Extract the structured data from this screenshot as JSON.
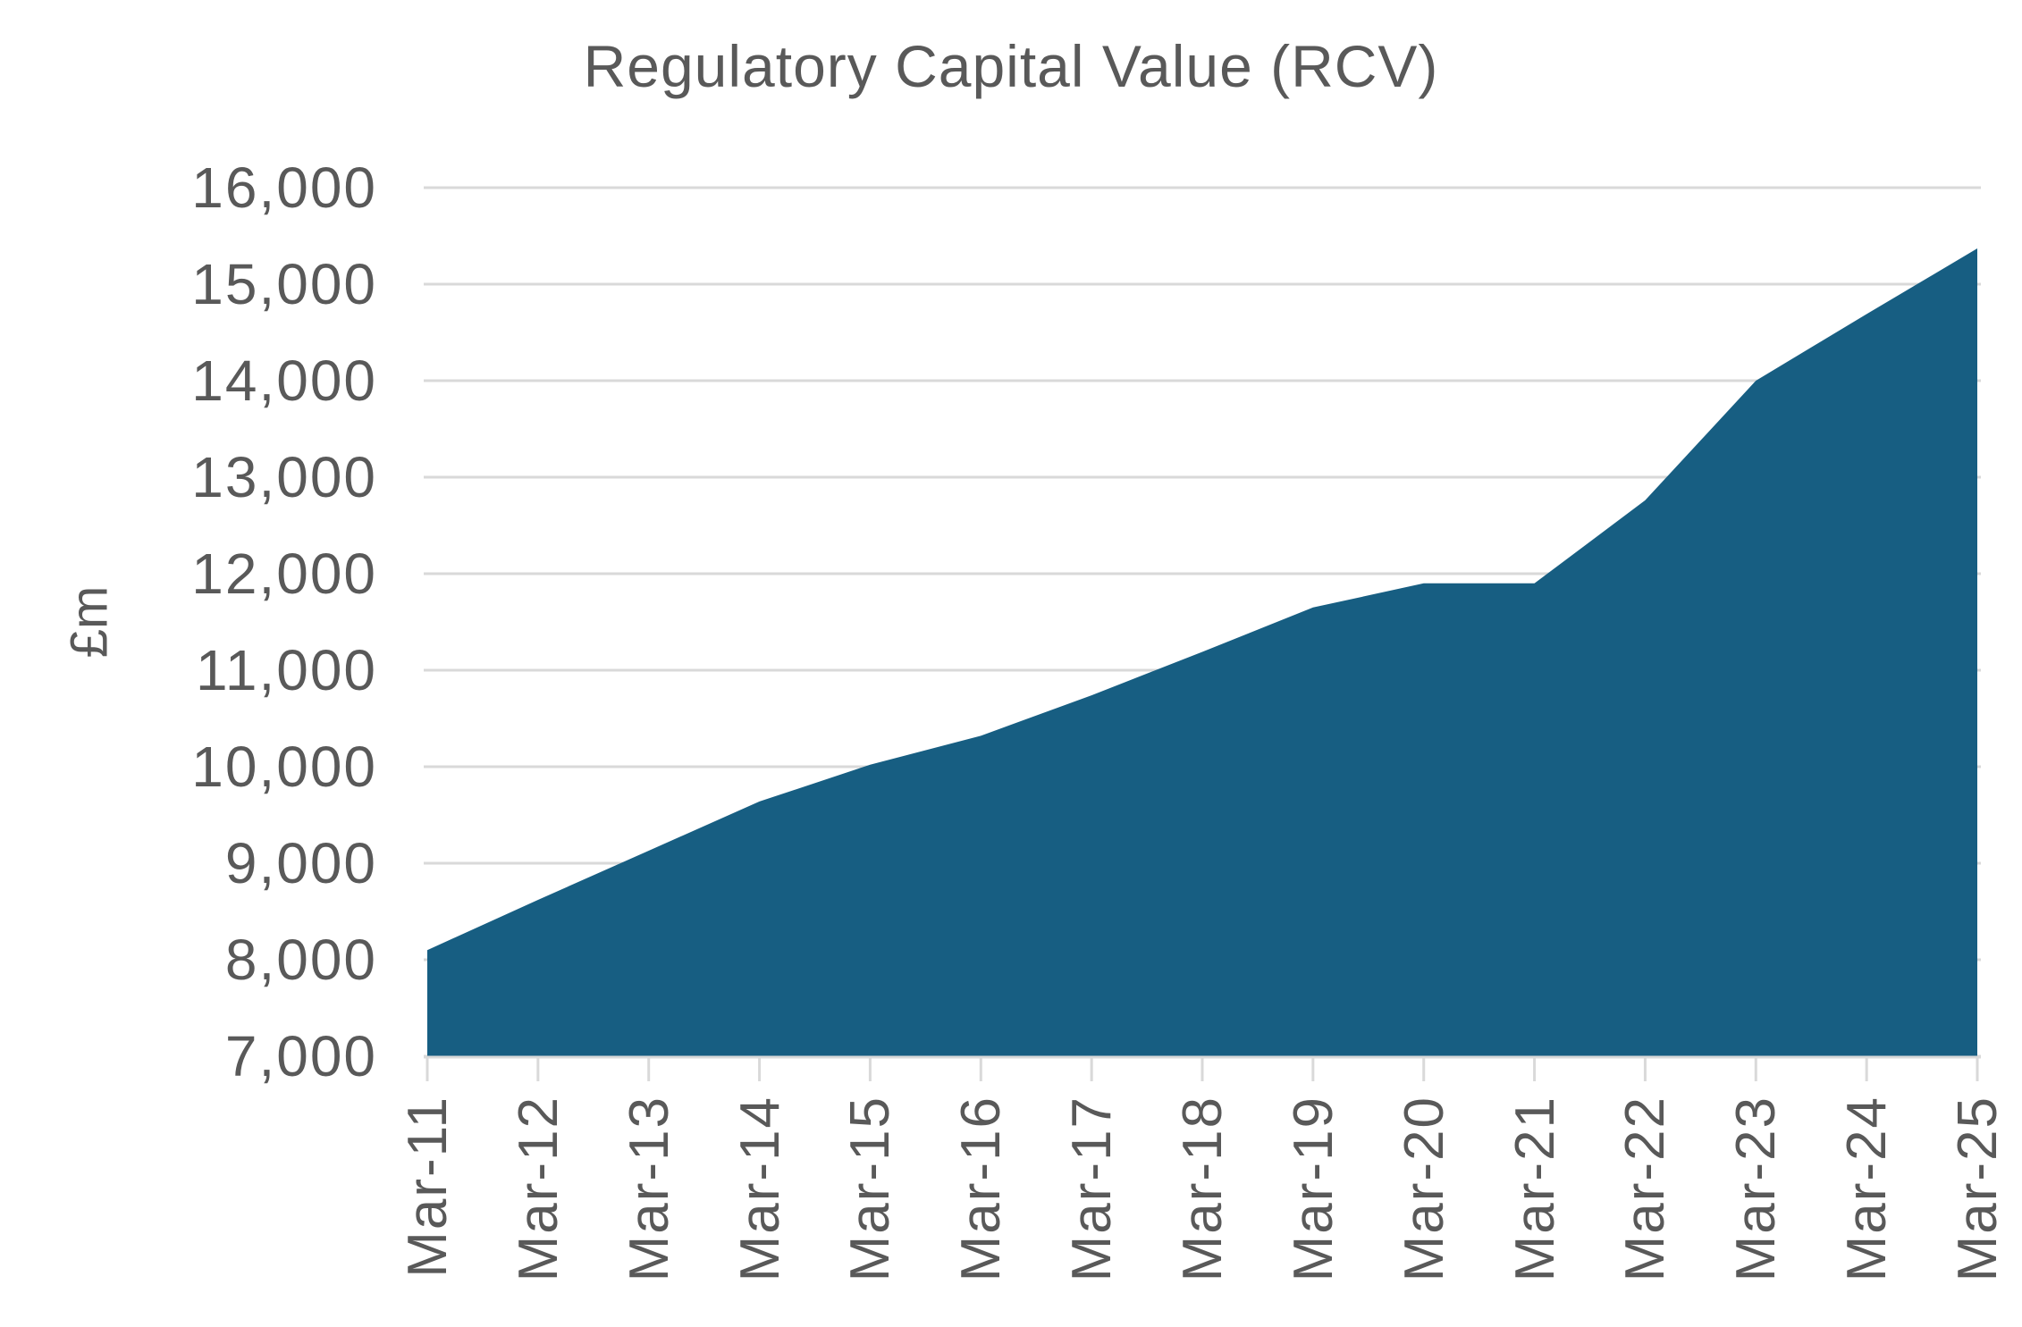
{
  "chart_data": {
    "type": "area",
    "title": "Regulatory Capital Value (RCV)",
    "ylabel": "£m",
    "xlabel": "",
    "categories": [
      "Mar-11",
      "Mar-12",
      "Mar-13",
      "Mar-14",
      "Mar-15",
      "Mar-16",
      "Mar-17",
      "Mar-18",
      "Mar-19",
      "Mar-20",
      "Mar-21",
      "Mar-22",
      "Mar-23",
      "Mar-24",
      "Mar-25"
    ],
    "values": [
      8100,
      8620,
      9130,
      9640,
      10020,
      10320,
      10740,
      11190,
      11650,
      11900,
      11900,
      12760,
      14000,
      14690,
      15370
    ],
    "ylim": [
      7000,
      16000
    ],
    "ytick_step": 1000,
    "ytick_labels_top_down": [
      "16,000",
      "15,000",
      "14,000",
      "13,000",
      "12,000",
      "11,000",
      "10,000",
      "9,000",
      "8,000",
      "7,000"
    ],
    "grid": true,
    "legend": "none",
    "colors": {
      "area": "#175E82",
      "text": "#595959",
      "gridline": "#D9D9D9",
      "axis": "#D9D9D9",
      "background": "#FFFFFF"
    }
  }
}
